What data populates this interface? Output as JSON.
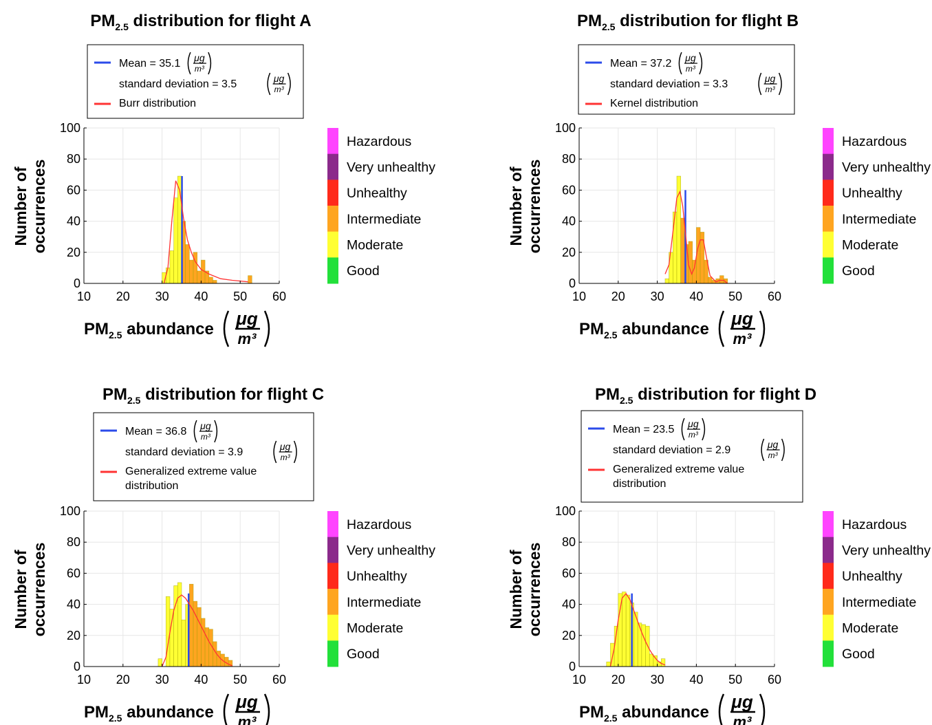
{
  "shared": {
    "xlabel_main": "PM",
    "xlabel_sub": "2.5",
    "xlabel_rest": " abundance",
    "unit_num": "μg",
    "unit_den": "m³",
    "ylabel_line1": "Number of",
    "ylabel_line2": "occurrences",
    "legend_mean_prefix": "Mean = ",
    "legend_sd_prefix": "standard deviation = ",
    "title_main": "PM",
    "title_sub": "2.5",
    "title_rest_prefix": " distribution for flight "
  },
  "colors": {
    "mean_line": "#2b4bea",
    "fit_line": "#ff3333",
    "good": "#22e03a",
    "moderate": "#ffff33",
    "intermediate": "#ffa520",
    "unhealthy": "#ff2a1a",
    "very_unhealthy": "#8b2a8b",
    "hazardous": "#ff44ff"
  },
  "colorbar_labels": [
    "Hazardous",
    "Very unhealthy",
    "Unhealthy",
    "Intermediate",
    "Moderate",
    "Good"
  ],
  "chart_data": [
    {
      "type": "bar",
      "flight": "A",
      "mean": "35.1",
      "mean_value": 35.1,
      "mean_height": 69,
      "sd": "3.5",
      "fit_name": [
        "Burr distribution"
      ],
      "xlim": [
        10,
        60
      ],
      "ylim": [
        0,
        100
      ],
      "xticks": [
        10,
        20,
        30,
        40,
        50,
        60
      ],
      "yticks": [
        0,
        20,
        40,
        60,
        80,
        100
      ],
      "bin_width": 1,
      "bins": [
        {
          "x": 30.5,
          "y": 7,
          "c": "moderate"
        },
        {
          "x": 31.5,
          "y": 10,
          "c": "moderate"
        },
        {
          "x": 32.5,
          "y": 21,
          "c": "moderate"
        },
        {
          "x": 33.5,
          "y": 55,
          "c": "moderate"
        },
        {
          "x": 34.5,
          "y": 69,
          "c": "moderate"
        },
        {
          "x": 35.5,
          "y": 40,
          "c": "intermediate"
        },
        {
          "x": 36.5,
          "y": 25,
          "c": "intermediate"
        },
        {
          "x": 37.5,
          "y": 15,
          "c": "intermediate"
        },
        {
          "x": 38.5,
          "y": 20,
          "c": "intermediate"
        },
        {
          "x": 39.5,
          "y": 8,
          "c": "intermediate"
        },
        {
          "x": 40.5,
          "y": 15,
          "c": "intermediate"
        },
        {
          "x": 41.5,
          "y": 8,
          "c": "intermediate"
        },
        {
          "x": 42.5,
          "y": 4,
          "c": "intermediate"
        },
        {
          "x": 43.5,
          "y": 2,
          "c": "intermediate"
        },
        {
          "x": 52.5,
          "y": 5,
          "c": "intermediate"
        }
      ],
      "fit": [
        [
          30.5,
          0
        ],
        [
          31.5,
          10
        ],
        [
          32.5,
          40
        ],
        [
          33.5,
          66
        ],
        [
          34.5,
          60
        ],
        [
          35.5,
          42
        ],
        [
          36.5,
          28
        ],
        [
          37.5,
          20
        ],
        [
          38.5,
          14
        ],
        [
          40,
          9
        ],
        [
          42,
          6
        ],
        [
          45,
          3
        ],
        [
          48,
          2
        ],
        [
          52,
          1
        ]
      ]
    },
    {
      "type": "bar",
      "flight": "B",
      "mean": "37.2",
      "mean_value": 37.2,
      "mean_height": 60,
      "sd": "3.3",
      "fit_name": [
        "Kernel distribution"
      ],
      "xlim": [
        10,
        60
      ],
      "ylim": [
        0,
        100
      ],
      "xticks": [
        10,
        20,
        30,
        40,
        50,
        60
      ],
      "yticks": [
        0,
        20,
        40,
        60,
        80,
        100
      ],
      "bin_width": 1,
      "bins": [
        {
          "x": 32.5,
          "y": 3,
          "c": "moderate"
        },
        {
          "x": 33.5,
          "y": 20,
          "c": "moderate"
        },
        {
          "x": 34.5,
          "y": 46,
          "c": "moderate"
        },
        {
          "x": 35.5,
          "y": 69,
          "c": "moderate"
        },
        {
          "x": 36.5,
          "y": 42,
          "c": "intermediate"
        },
        {
          "x": 37.5,
          "y": 25,
          "c": "intermediate"
        },
        {
          "x": 38.5,
          "y": 27,
          "c": "intermediate"
        },
        {
          "x": 39.5,
          "y": 15,
          "c": "intermediate"
        },
        {
          "x": 40.5,
          "y": 36,
          "c": "intermediate"
        },
        {
          "x": 41.5,
          "y": 33,
          "c": "intermediate"
        },
        {
          "x": 42.5,
          "y": 15,
          "c": "intermediate"
        },
        {
          "x": 43.5,
          "y": 4,
          "c": "intermediate"
        },
        {
          "x": 44.5,
          "y": 2,
          "c": "intermediate"
        },
        {
          "x": 45.5,
          "y": 3,
          "c": "intermediate"
        },
        {
          "x": 46.5,
          "y": 5,
          "c": "intermediate"
        },
        {
          "x": 47.5,
          "y": 3,
          "c": "intermediate"
        }
      ],
      "fit": [
        [
          32,
          6
        ],
        [
          33,
          12
        ],
        [
          34,
          33
        ],
        [
          35,
          55
        ],
        [
          35.8,
          59
        ],
        [
          36.5,
          50
        ],
        [
          37.3,
          30
        ],
        [
          38,
          12
        ],
        [
          38.8,
          6
        ],
        [
          39.5,
          10
        ],
        [
          40.3,
          22
        ],
        [
          41,
          28
        ],
        [
          41.8,
          28
        ],
        [
          42.5,
          18
        ],
        [
          43.5,
          5
        ],
        [
          45,
          1
        ],
        [
          46,
          2
        ],
        [
          47,
          2
        ],
        [
          48,
          0
        ]
      ]
    },
    {
      "type": "bar",
      "flight": "C",
      "mean": "36.8",
      "mean_value": 36.8,
      "mean_height": 47,
      "sd": "3.9",
      "fit_name": [
        "Generalized extreme value",
        "distribution"
      ],
      "xlim": [
        10,
        60
      ],
      "ylim": [
        0,
        100
      ],
      "xticks": [
        10,
        20,
        30,
        40,
        50,
        60
      ],
      "yticks": [
        0,
        20,
        40,
        60,
        80,
        100
      ],
      "bin_width": 1,
      "bins": [
        {
          "x": 29.5,
          "y": 5,
          "c": "moderate"
        },
        {
          "x": 31.5,
          "y": 45,
          "c": "moderate"
        },
        {
          "x": 32.5,
          "y": 37,
          "c": "moderate"
        },
        {
          "x": 33.5,
          "y": 52,
          "c": "moderate"
        },
        {
          "x": 34.5,
          "y": 54,
          "c": "moderate"
        },
        {
          "x": 35.5,
          "y": 30,
          "c": "moderate"
        },
        {
          "x": 36.5,
          "y": 40,
          "c": "moderate"
        },
        {
          "x": 37.5,
          "y": 53,
          "c": "intermediate"
        },
        {
          "x": 38.5,
          "y": 42,
          "c": "intermediate"
        },
        {
          "x": 39.5,
          "y": 38,
          "c": "intermediate"
        },
        {
          "x": 40.5,
          "y": 31,
          "c": "intermediate"
        },
        {
          "x": 41.5,
          "y": 25,
          "c": "intermediate"
        },
        {
          "x": 42.5,
          "y": 24,
          "c": "intermediate"
        },
        {
          "x": 43.5,
          "y": 16,
          "c": "intermediate"
        },
        {
          "x": 44.5,
          "y": 10,
          "c": "intermediate"
        },
        {
          "x": 45.5,
          "y": 8,
          "c": "intermediate"
        },
        {
          "x": 46.5,
          "y": 6,
          "c": "intermediate"
        },
        {
          "x": 47.5,
          "y": 4,
          "c": "intermediate"
        }
      ],
      "fit": [
        [
          30,
          0
        ],
        [
          31,
          6
        ],
        [
          32,
          22
        ],
        [
          33,
          36
        ],
        [
          34,
          44
        ],
        [
          35,
          46
        ],
        [
          36,
          44
        ],
        [
          37,
          40
        ],
        [
          38,
          36
        ],
        [
          39,
          31
        ],
        [
          40,
          26
        ],
        [
          41,
          21
        ],
        [
          42,
          16
        ],
        [
          43,
          12
        ],
        [
          44,
          8
        ],
        [
          45,
          5
        ],
        [
          46,
          3
        ],
        [
          47,
          1.5
        ],
        [
          48,
          0.5
        ]
      ]
    },
    {
      "type": "bar",
      "flight": "D",
      "mean": "23.5",
      "mean_value": 23.5,
      "mean_height": 47,
      "sd": "2.9",
      "fit_name": [
        "Generalized extreme value",
        "distribution"
      ],
      "xlim": [
        10,
        60
      ],
      "ylim": [
        0,
        100
      ],
      "xticks": [
        10,
        20,
        30,
        40,
        50,
        60
      ],
      "yticks": [
        0,
        20,
        40,
        60,
        80,
        100
      ],
      "bin_width": 1,
      "bins": [
        {
          "x": 17.5,
          "y": 3,
          "c": "moderate"
        },
        {
          "x": 18.5,
          "y": 15,
          "c": "moderate"
        },
        {
          "x": 19.5,
          "y": 26,
          "c": "moderate"
        },
        {
          "x": 20.5,
          "y": 47,
          "c": "moderate"
        },
        {
          "x": 21.5,
          "y": 48,
          "c": "moderate"
        },
        {
          "x": 22.5,
          "y": 46,
          "c": "moderate"
        },
        {
          "x": 23.5,
          "y": 41,
          "c": "moderate"
        },
        {
          "x": 24.5,
          "y": 35,
          "c": "moderate"
        },
        {
          "x": 25.5,
          "y": 28,
          "c": "moderate"
        },
        {
          "x": 26.5,
          "y": 27,
          "c": "moderate"
        },
        {
          "x": 27.5,
          "y": 26,
          "c": "moderate"
        },
        {
          "x": 28.5,
          "y": 8,
          "c": "moderate"
        },
        {
          "x": 29.5,
          "y": 7,
          "c": "moderate"
        },
        {
          "x": 30.5,
          "y": 3,
          "c": "moderate"
        },
        {
          "x": 31.5,
          "y": 5,
          "c": "moderate"
        }
      ],
      "fit": [
        [
          18,
          0
        ],
        [
          19,
          12
        ],
        [
          20,
          30
        ],
        [
          21,
          44
        ],
        [
          22,
          47
        ],
        [
          23,
          43
        ],
        [
          24,
          36
        ],
        [
          25,
          29
        ],
        [
          26,
          22
        ],
        [
          27,
          16
        ],
        [
          28,
          11
        ],
        [
          29,
          7
        ],
        [
          30,
          4
        ],
        [
          31,
          2
        ],
        [
          32,
          1
        ]
      ]
    }
  ]
}
